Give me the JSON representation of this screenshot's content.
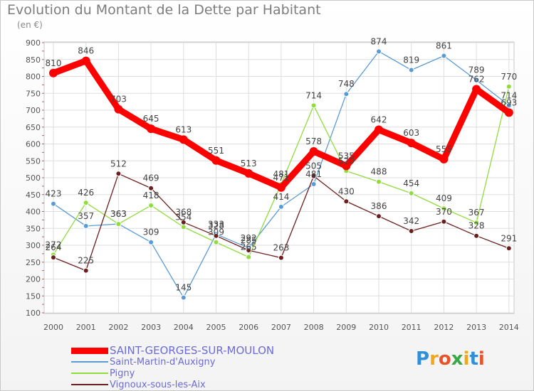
{
  "header": {
    "title": "Evolution du Montant de la Dette par Habitant",
    "unit": "(en €)"
  },
  "logo": {
    "text": "Proxiti"
  },
  "chart_data": {
    "type": "line",
    "title": "Evolution du Montant de la Dette par Habitant",
    "subtitle": "(en €)",
    "categories": [
      "2000",
      "2001",
      "2002",
      "2003",
      "2004",
      "2005",
      "2006",
      "2007",
      "2008",
      "2009",
      "2010",
      "2011",
      "2012",
      "2013",
      "2014"
    ],
    "ylim": [
      100,
      900
    ],
    "yticks": [
      100,
      150,
      200,
      250,
      300,
      350,
      400,
      450,
      500,
      550,
      600,
      650,
      700,
      750,
      800,
      850,
      900
    ],
    "grid": true,
    "legend_position": "bottom-left",
    "series": [
      {
        "name": "SAINT-GEORGES-SUR-MOULON",
        "color": "#ff0000",
        "emphasis": true,
        "values": [
          810,
          846,
          703,
          645,
          613,
          551,
          513,
          471,
          578,
          535,
          642,
          603,
          555,
          762,
          693
        ]
      },
      {
        "name": "Saint-Martin-d'Auxigny",
        "color": "#5b9bd5",
        "emphasis": false,
        "values": [
          423,
          357,
          363,
          309,
          145,
          333,
          292,
          414,
          481,
          748,
          874,
          819,
          861,
          789,
          714
        ]
      },
      {
        "name": "Pigny",
        "color": "#8fdd3b",
        "emphasis": false,
        "values": [
          272,
          426,
          363,
          418,
          354,
          309,
          265,
          481,
          714,
          520,
          488,
          454,
          409,
          367,
          770
        ]
      },
      {
        "name": "Vignoux-sous-les-Aix",
        "color": "#6b1e1e",
        "emphasis": false,
        "values": [
          264,
          225,
          512,
          469,
          368,
          328,
          285,
          263,
          505,
          430,
          386,
          342,
          370,
          328,
          291
        ]
      }
    ]
  }
}
